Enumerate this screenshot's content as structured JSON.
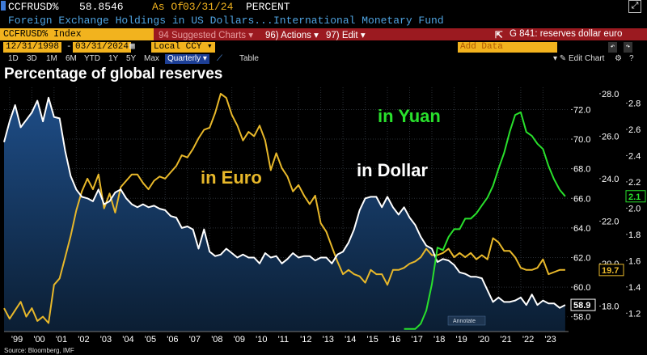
{
  "header": {
    "ticker": "CCFRUSD%",
    "value": "58.8546",
    "as_of_label": "As Of",
    "as_of_date": "03/31/24",
    "unit": "PERCENT",
    "description": "Foreign Exchange Holdings in US Dollars...",
    "source_org": "International Monetary Fund"
  },
  "toolbar": {
    "security": "CCFRUSD% Index",
    "suggested": "94 Suggested Charts",
    "actions": "96) Actions",
    "edit": "97) Edit",
    "graph_title": "G 841: reserves dollar euro",
    "start_date": "12/31/1998",
    "end_date": "03/31/2024",
    "currency": "Local CCY",
    "add_data": "Add Data",
    "edit_chart": "Edit Chart"
  },
  "periods": [
    "1D",
    "3D",
    "1M",
    "6M",
    "YTD",
    "1Y",
    "5Y",
    "Max"
  ],
  "frequency": "Quarterly",
  "table_label": "Table",
  "colors": {
    "dollar": "#ffffff",
    "euro": "#e8b82a",
    "yuan": "#29e02c",
    "area_top": "#1e4d87",
    "area_bottom": "#0b1e33",
    "background": "#000000",
    "bloomberg_red": "#9b1a20",
    "bloomberg_amber": "#f2b31e"
  },
  "chart_data": {
    "type": "line",
    "title": "Percentage of global reserves",
    "annotations": [
      "in Yuan",
      "in Euro",
      "in Dollar"
    ],
    "x_tick_labels": [
      "'99",
      "'00",
      "'01",
      "'02",
      "'03",
      "'04",
      "'05",
      "'06",
      "'07",
      "'08",
      "'09",
      "'10",
      "'11",
      "'12",
      "'13",
      "'14",
      "'15",
      "'16",
      "'17",
      "'18",
      "'19",
      "'20",
      "'21",
      "'22",
      "'23"
    ],
    "x_start_year": 1999,
    "annotate_label": "Annotate",
    "series": [
      {
        "name": "in Dollar",
        "axis": "left-inner",
        "ylim": [
          57,
          73.5
        ],
        "ticks": [
          58,
          60,
          62,
          64,
          66,
          68,
          70,
          72
        ],
        "tick_labels": [
          "58.0",
          "60.0",
          "62.0",
          "64.0",
          "66.0",
          "68.0",
          "70.0",
          "72.0"
        ],
        "last_label": "58.9",
        "x": [
          1998.75,
          1999.0,
          1999.25,
          1999.5,
          1999.75,
          2000.0,
          2000.25,
          2000.5,
          2000.75,
          2001.0,
          2001.25,
          2001.5,
          2001.75,
          2002.0,
          2002.25,
          2002.5,
          2002.75,
          2003.0,
          2003.25,
          2003.5,
          2003.75,
          2004.0,
          2004.25,
          2004.5,
          2004.75,
          2005.0,
          2005.25,
          2005.5,
          2005.75,
          2006.0,
          2006.25,
          2006.5,
          2006.75,
          2007.0,
          2007.25,
          2007.5,
          2007.75,
          2008.0,
          2008.25,
          2008.5,
          2008.75,
          2009.0,
          2009.25,
          2009.5,
          2009.75,
          2010.0,
          2010.25,
          2010.5,
          2010.75,
          2011.0,
          2011.25,
          2011.5,
          2011.75,
          2012.0,
          2012.25,
          2012.5,
          2012.75,
          2013.0,
          2013.25,
          2013.5,
          2013.75,
          2014.0,
          2014.25,
          2014.5,
          2014.75,
          2015.0,
          2015.25,
          2015.5,
          2015.75,
          2016.0,
          2016.25,
          2016.5,
          2016.75,
          2017.0,
          2017.25,
          2017.5,
          2017.75,
          2018.0,
          2018.25,
          2018.5,
          2018.75,
          2019.0,
          2019.25,
          2019.5,
          2019.75,
          2020.0,
          2020.25,
          2020.5,
          2020.75,
          2021.0,
          2021.25,
          2021.5,
          2021.75,
          2022.0,
          2022.25,
          2022.5,
          2022.75,
          2023.0,
          2023.25,
          2023.5,
          2023.75,
          2024.0
        ],
        "y": [
          69.8,
          71.2,
          72.3,
          70.8,
          71.3,
          71.8,
          72.6,
          71.2,
          72.8,
          71.5,
          71.4,
          69.2,
          67.5,
          66.6,
          66.1,
          66.0,
          65.8,
          66.6,
          65.6,
          65.8,
          66.4,
          66.6,
          66.0,
          65.6,
          65.4,
          65.6,
          65.4,
          65.5,
          65.3,
          65.2,
          64.8,
          64.7,
          64.0,
          64.1,
          63.9,
          62.6,
          63.9,
          62.4,
          62.1,
          62.2,
          62.6,
          62.3,
          62.0,
          62.2,
          62.0,
          62.0,
          61.6,
          62.3,
          62.0,
          62.1,
          61.6,
          61.9,
          62.3,
          62.0,
          62.1,
          62.1,
          61.8,
          62.0,
          62.0,
          61.6,
          62.2,
          62.4,
          63.0,
          63.9,
          65.2,
          66.0,
          66.1,
          66.1,
          65.4,
          66.1,
          65.4,
          64.9,
          65.4,
          64.7,
          64.2,
          63.4,
          62.8,
          62.6,
          61.7,
          61.9,
          61.8,
          61.5,
          61.0,
          60.9,
          60.7,
          60.7,
          60.6,
          59.8,
          59.0,
          59.3,
          59.0,
          59.0,
          59.1,
          59.3,
          58.8,
          59.5,
          58.8,
          59.1,
          58.9,
          58.9,
          58.6,
          58.8
        ],
        "color": "#ffffff"
      },
      {
        "name": "in Euro",
        "axis": "middle",
        "ylim": [
          16.8,
          28.3
        ],
        "ticks": [
          18,
          20,
          22,
          24,
          26,
          28
        ],
        "tick_labels": [
          "18.0",
          "20.0",
          "22.0",
          "24.0",
          "26.0",
          "28.0"
        ],
        "last_label": "19.7",
        "x": [
          1998.75,
          1999.0,
          1999.25,
          1999.5,
          1999.75,
          2000.0,
          2000.25,
          2000.5,
          2000.75,
          2001.0,
          2001.25,
          2001.5,
          2001.75,
          2002.0,
          2002.25,
          2002.5,
          2002.75,
          2003.0,
          2003.25,
          2003.5,
          2003.75,
          2004.0,
          2004.25,
          2004.5,
          2004.75,
          2005.0,
          2005.25,
          2005.5,
          2005.75,
          2006.0,
          2006.25,
          2006.5,
          2006.75,
          2007.0,
          2007.25,
          2007.5,
          2007.75,
          2008.0,
          2008.25,
          2008.5,
          2008.75,
          2009.0,
          2009.25,
          2009.5,
          2009.75,
          2010.0,
          2010.25,
          2010.5,
          2010.75,
          2011.0,
          2011.25,
          2011.5,
          2011.75,
          2012.0,
          2012.25,
          2012.5,
          2012.75,
          2013.0,
          2013.25,
          2013.5,
          2013.75,
          2014.0,
          2014.25,
          2014.5,
          2014.75,
          2015.0,
          2015.25,
          2015.5,
          2015.75,
          2016.0,
          2016.25,
          2016.5,
          2016.75,
          2017.0,
          2017.25,
          2017.5,
          2017.75,
          2018.0,
          2018.25,
          2018.5,
          2018.75,
          2019.0,
          2019.25,
          2019.5,
          2019.75,
          2020.0,
          2020.25,
          2020.5,
          2020.75,
          2021.0,
          2021.25,
          2021.5,
          2021.75,
          2022.0,
          2022.25,
          2022.5,
          2022.75,
          2023.0,
          2023.25,
          2023.5,
          2023.75,
          2024.0
        ],
        "y": [
          17.9,
          17.4,
          17.8,
          18.2,
          17.5,
          17.9,
          17.3,
          17.5,
          17.2,
          19.0,
          19.3,
          20.3,
          21.3,
          22.5,
          23.4,
          24.0,
          23.5,
          24.2,
          22.6,
          23.3,
          22.4,
          23.6,
          23.9,
          24.2,
          24.2,
          23.8,
          23.5,
          23.9,
          24.1,
          24.0,
          24.3,
          24.6,
          25.1,
          25.0,
          25.4,
          25.9,
          26.3,
          26.4,
          27.1,
          28.0,
          27.8,
          27.0,
          26.5,
          25.8,
          26.2,
          26.0,
          26.5,
          25.8,
          24.4,
          25.2,
          24.5,
          24.1,
          23.4,
          23.7,
          23.2,
          22.8,
          23.2,
          21.9,
          21.5,
          20.8,
          20.1,
          19.5,
          19.7,
          19.5,
          19.4,
          19.1,
          19.7,
          19.5,
          19.5,
          19.0,
          19.7,
          19.7,
          19.8,
          20.0,
          20.1,
          20.3,
          20.7,
          20.4,
          20.4,
          20.5,
          20.7,
          20.3,
          20.5,
          20.3,
          20.5,
          20.2,
          20.4,
          20.2,
          21.2,
          21.0,
          20.6,
          20.6,
          20.3,
          19.8,
          19.7,
          19.7,
          19.8,
          20.2,
          19.5,
          19.6,
          19.7,
          19.7
        ],
        "color": "#e8b82a"
      },
      {
        "name": "in Yuan",
        "axis": "right",
        "ylim": [
          1.06,
          2.92
        ],
        "ticks": [
          1.2,
          1.4,
          1.6,
          1.8,
          2.0,
          2.2,
          2.4,
          2.6,
          2.8
        ],
        "tick_labels": [
          "1.2",
          "1.4",
          "1.6",
          "1.8",
          "2.0",
          "2.2",
          "2.4",
          "2.6",
          "2.8"
        ],
        "last_label": "2.1",
        "x": [
          2016.75,
          2017.0,
          2017.25,
          2017.5,
          2017.75,
          2018.0,
          2018.25,
          2018.5,
          2018.75,
          2019.0,
          2019.25,
          2019.5,
          2019.75,
          2020.0,
          2020.25,
          2020.5,
          2020.75,
          2021.0,
          2021.25,
          2021.5,
          2021.75,
          2022.0,
          2022.25,
          2022.5,
          2022.75,
          2023.0,
          2023.25,
          2023.5,
          2023.75,
          2024.0
        ],
        "y": [
          1.08,
          1.08,
          1.08,
          1.12,
          1.22,
          1.42,
          1.7,
          1.68,
          1.78,
          1.84,
          1.84,
          1.92,
          1.92,
          1.96,
          2.02,
          2.08,
          2.17,
          2.3,
          2.42,
          2.58,
          2.71,
          2.73,
          2.58,
          2.55,
          2.49,
          2.45,
          2.32,
          2.22,
          2.14,
          2.09
        ],
        "color": "#29e02c"
      }
    ]
  },
  "source": "Source: Bloomberg, IMF"
}
